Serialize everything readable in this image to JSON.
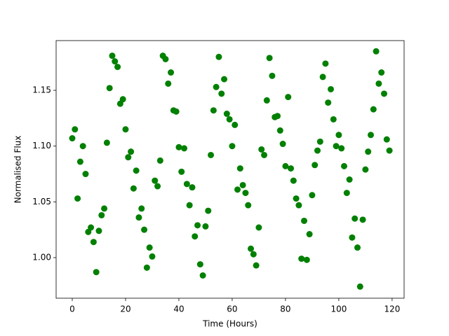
{
  "chart_data": {
    "type": "scatter",
    "x_label": "Time (Hours)",
    "y_label": "Normalised Flux",
    "color": "#008000",
    "x": [
      0,
      1,
      2,
      3,
      4,
      5,
      6,
      7,
      8,
      9,
      10,
      11,
      12,
      13,
      14,
      15,
      16,
      17,
      18,
      19,
      20,
      21,
      22,
      23,
      24,
      25,
      26,
      27,
      28,
      29,
      30,
      31,
      32,
      33,
      34,
      35,
      36,
      37,
      38,
      39,
      40,
      41,
      42,
      43,
      44,
      45,
      46,
      47,
      48,
      49,
      50,
      51,
      52,
      53,
      54,
      55,
      56,
      57,
      58,
      59,
      60,
      61,
      62,
      63,
      64,
      65,
      66,
      67,
      68,
      69,
      70,
      71,
      72,
      73,
      74,
      75,
      76,
      77,
      78,
      79,
      80,
      81,
      82,
      83,
      84,
      85,
      86,
      87,
      88,
      89,
      90,
      91,
      92,
      93,
      94,
      95,
      96,
      97,
      98,
      99,
      100,
      101,
      102,
      103,
      104,
      105,
      106,
      107,
      108,
      109,
      110,
      111,
      112,
      113,
      114,
      115,
      116,
      117,
      118,
      119
    ],
    "values": [
      1.107,
      1.115,
      1.053,
      1.086,
      1.1,
      1.075,
      1.023,
      1.027,
      1.014,
      0.987,
      1.024,
      1.038,
      1.044,
      1.103,
      1.152,
      1.181,
      1.176,
      1.171,
      1.138,
      1.142,
      1.115,
      1.09,
      1.095,
      1.062,
      1.078,
      1.036,
      1.044,
      1.025,
      0.991,
      1.009,
      1.001,
      1.069,
      1.064,
      1.087,
      1.181,
      1.178,
      1.156,
      1.166,
      1.132,
      1.131,
      1.099,
      1.077,
      1.098,
      1.066,
      1.047,
      1.063,
      1.019,
      1.029,
      0.994,
      0.984,
      1.028,
      1.042,
      1.092,
      1.132,
      1.153,
      1.18,
      1.147,
      1.16,
      1.129,
      1.124,
      1.1,
      1.119,
      1.061,
      1.08,
      1.065,
      1.058,
      1.047,
      1.008,
      1.003,
      0.993,
      1.027,
      1.097,
      1.092,
      1.141,
      1.179,
      1.163,
      1.126,
      1.127,
      1.114,
      1.102,
      1.082,
      1.144,
      1.08,
      1.069,
      1.053,
      1.047,
      0.999,
      1.033,
      0.998,
      1.021,
      1.056,
      1.083,
      1.096,
      1.104,
      1.162,
      1.174,
      1.139,
      1.151,
      1.124,
      1.1,
      1.11,
      1.098,
      1.082,
      1.058,
      1.07,
      1.018,
      1.035,
      1.009,
      0.974,
      1.034,
      1.079,
      1.095,
      1.11,
      1.133,
      1.185,
      1.156,
      1.166,
      1.147,
      1.106,
      1.096
    ],
    "xlim": [
      -6.05,
      124.5
    ],
    "ylim": [
      0.9636,
      1.1946
    ],
    "xticks": [
      0,
      20,
      40,
      60,
      80,
      100,
      120
    ],
    "yticks": [
      {
        "value": 1.0,
        "label": "1.00"
      },
      {
        "value": 1.05,
        "label": "1.05"
      },
      {
        "value": 1.1,
        "label": "1.10"
      },
      {
        "value": 1.15,
        "label": "1.15"
      }
    ]
  }
}
